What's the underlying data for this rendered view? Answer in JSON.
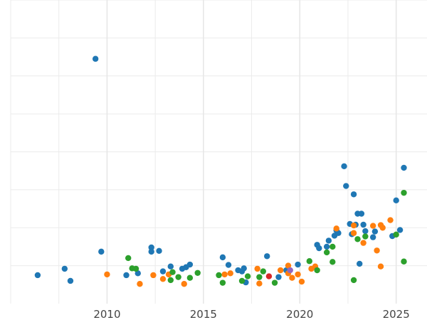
{
  "chart_data": {
    "type": "scatter",
    "title": "",
    "xlabel": "",
    "ylabel": "",
    "xlim": [
      2005.0,
      2026.6
    ],
    "ylim": [
      0,
      8
    ],
    "x_ticks": [
      2010,
      2015,
      2020,
      2025
    ],
    "x_tick_labels": [
      "2010",
      "2015",
      "2020",
      "2025"
    ],
    "y_gridlines": [
      1,
      2,
      3,
      4,
      5,
      6,
      7,
      8
    ],
    "grid": true,
    "y_tick_labels_shown": false,
    "legend": "none",
    "series": [
      {
        "color": "#1f77b4",
        "points": [
          [
            2006.4,
            0.75
          ],
          [
            2007.8,
            0.92
          ],
          [
            2008.1,
            0.6
          ],
          [
            2009.4,
            6.45
          ],
          [
            2009.7,
            1.37
          ],
          [
            2011.0,
            0.75
          ],
          [
            2011.6,
            0.8
          ],
          [
            2012.3,
            1.48
          ],
          [
            2012.3,
            1.37
          ],
          [
            2012.7,
            1.39
          ],
          [
            2012.9,
            0.85
          ],
          [
            2013.3,
            0.98
          ],
          [
            2013.9,
            0.92
          ],
          [
            2014.1,
            0.96
          ],
          [
            2014.3,
            1.03
          ],
          [
            2016.0,
            1.22
          ],
          [
            2016.3,
            1.02
          ],
          [
            2016.8,
            0.88
          ],
          [
            2017.0,
            0.85
          ],
          [
            2017.1,
            0.93
          ],
          [
            2017.2,
            0.56
          ],
          [
            2018.3,
            1.25
          ],
          [
            2018.9,
            0.7
          ],
          [
            2019.3,
            0.88
          ],
          [
            2019.9,
            1.03
          ],
          [
            2020.9,
            1.55
          ],
          [
            2021.0,
            1.46
          ],
          [
            2021.4,
            1.5
          ],
          [
            2021.5,
            1.66
          ],
          [
            2021.8,
            1.79
          ],
          [
            2021.9,
            1.93
          ],
          [
            2022.0,
            1.86
          ],
          [
            2022.3,
            3.62
          ],
          [
            2022.4,
            3.1
          ],
          [
            2022.6,
            2.1
          ],
          [
            2022.7,
            1.83
          ],
          [
            2022.8,
            2.88
          ],
          [
            2022.9,
            2.08
          ],
          [
            2023.0,
            2.37
          ],
          [
            2023.2,
            2.37
          ],
          [
            2023.1,
            1.05
          ],
          [
            2023.3,
            2.08
          ],
          [
            2023.4,
            1.91
          ],
          [
            2023.8,
            1.75
          ],
          [
            2023.9,
            1.9
          ],
          [
            2024.8,
            1.78
          ],
          [
            2025.0,
            2.72
          ],
          [
            2025.2,
            1.94
          ],
          [
            2025.4,
            3.58
          ]
        ]
      },
      {
        "color": "#ff7f0e",
        "points": [
          [
            2010.0,
            0.77
          ],
          [
            2011.7,
            0.52
          ],
          [
            2012.4,
            0.75
          ],
          [
            2012.9,
            0.65
          ],
          [
            2013.2,
            0.77
          ],
          [
            2014.0,
            0.52
          ],
          [
            2016.1,
            0.77
          ],
          [
            2016.4,
            0.8
          ],
          [
            2017.8,
            0.92
          ],
          [
            2017.9,
            0.53
          ],
          [
            2019.0,
            0.88
          ],
          [
            2019.4,
            0.8
          ],
          [
            2019.4,
            1.0
          ],
          [
            2019.6,
            0.68
          ],
          [
            2019.9,
            0.77
          ],
          [
            2020.1,
            0.58
          ],
          [
            2020.6,
            0.92
          ],
          [
            2020.8,
            0.98
          ],
          [
            2021.9,
            1.98
          ],
          [
            2022.8,
            2.06
          ],
          [
            2022.8,
            1.86
          ],
          [
            2023.3,
            1.6
          ],
          [
            2023.8,
            2.05
          ],
          [
            2024.0,
            1.4
          ],
          [
            2024.2,
            0.98
          ],
          [
            2024.2,
            2.07
          ],
          [
            2024.3,
            2.0
          ],
          [
            2024.7,
            2.2
          ]
        ]
      },
      {
        "color": "#2ca02c",
        "points": [
          [
            2011.1,
            1.2
          ],
          [
            2011.3,
            0.93
          ],
          [
            2011.5,
            0.92
          ],
          [
            2013.3,
            0.62
          ],
          [
            2013.4,
            0.83
          ],
          [
            2013.7,
            0.7
          ],
          [
            2014.3,
            0.68
          ],
          [
            2014.7,
            0.81
          ],
          [
            2015.8,
            0.75
          ],
          [
            2016.0,
            0.55
          ],
          [
            2017.0,
            0.6
          ],
          [
            2017.3,
            0.72
          ],
          [
            2017.9,
            0.7
          ],
          [
            2018.1,
            0.85
          ],
          [
            2018.7,
            0.55
          ],
          [
            2020.5,
            1.12
          ],
          [
            2020.9,
            0.88
          ],
          [
            2021.4,
            1.35
          ],
          [
            2021.7,
            1.5
          ],
          [
            2021.7,
            1.1
          ],
          [
            2022.8,
            0.62
          ],
          [
            2023.0,
            1.7
          ],
          [
            2023.4,
            1.77
          ],
          [
            2025.0,
            1.82
          ],
          [
            2025.4,
            2.92
          ],
          [
            2025.4,
            1.11
          ]
        ]
      },
      {
        "color": "#d62728",
        "points": [
          [
            2018.4,
            0.72
          ]
        ]
      },
      {
        "color": "#9467bd",
        "points": [
          [
            2019.5,
            0.88
          ]
        ]
      }
    ]
  }
}
